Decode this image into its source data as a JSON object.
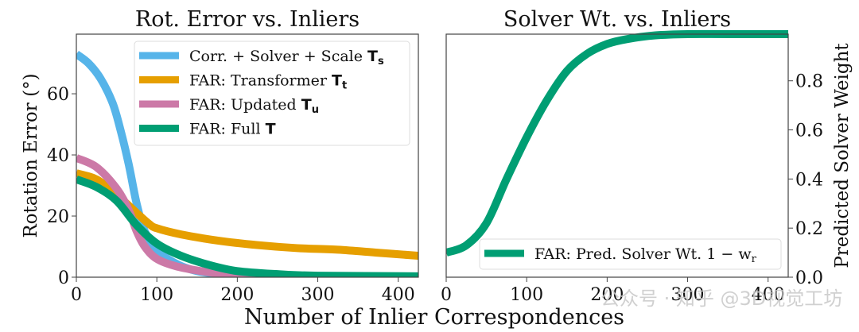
{
  "figure": {
    "xlabel": "Number of Inlier Correspondences",
    "watermark": "公众号 · 知乎 @3D视觉工坊"
  },
  "left": {
    "title": "Rot. Error vs. Inliers",
    "ylabel": "Rotation Error (°)",
    "xticks": [
      "0",
      "100",
      "200",
      "300",
      "400"
    ],
    "yticks": [
      "0",
      "20",
      "40",
      "60"
    ],
    "legend": [
      {
        "text": "Corr. + Solver + Scale ",
        "bold": "T",
        "sub": "s",
        "color": "#56B4E9"
      },
      {
        "text": "FAR: Transformer ",
        "bold": "T",
        "sub": "t",
        "color": "#E69F00"
      },
      {
        "text": "FAR: Updated ",
        "bold": "T",
        "sub": "u",
        "color": "#CC79A7"
      },
      {
        "text": "FAR: Full ",
        "bold": "T",
        "sub": "",
        "color": "#009E73"
      }
    ]
  },
  "right": {
    "title": "Solver Wt. vs. Inliers",
    "ylabel": "Predicted Solver Weight",
    "xticks": [
      "0",
      "100",
      "200",
      "300",
      "400"
    ],
    "yticks": [
      "0.0",
      "0.2",
      "0.4",
      "0.6",
      "0.8"
    ],
    "legend": [
      {
        "text": "FAR: Pred. Solver Wt. 1 − w",
        "sub": "r",
        "color": "#009E73"
      }
    ]
  },
  "chart_data": [
    {
      "type": "line",
      "title": "Rot. Error vs. Inliers",
      "xlabel": "Number of Inlier Correspondences",
      "ylabel": "Rotation Error (°)",
      "xlim": [
        0,
        425
      ],
      "ylim": [
        0,
        79.5
      ],
      "xticks": [
        0,
        100,
        200,
        300,
        400
      ],
      "yticks": [
        0,
        20,
        40,
        60
      ],
      "grid": false,
      "legend_position": "upper right",
      "series": [
        {
          "name": "Corr. + Solver + Scale T_s",
          "color": "#56B4E9",
          "x": [
            0,
            15,
            30,
            45,
            55,
            65,
            75,
            85,
            100,
            120,
            150,
            200,
            250,
            425
          ],
          "y": [
            73,
            70,
            65,
            57,
            48,
            37,
            24,
            15,
            9,
            5,
            2,
            0.5,
            0.1,
            0
          ]
        },
        {
          "name": "FAR: Transformer T_t",
          "color": "#E69F00",
          "x": [
            0,
            25,
            50,
            75,
            90,
            100,
            130,
            175,
            225,
            275,
            325,
            375,
            425
          ],
          "y": [
            34,
            32,
            27,
            21,
            17.5,
            16,
            14,
            12,
            10.5,
            9.5,
            9,
            8,
            7
          ]
        },
        {
          "name": "FAR: Updated T_u",
          "color": "#CC79A7",
          "x": [
            0,
            25,
            50,
            65,
            75,
            85,
            100,
            125,
            160,
            200,
            250,
            425
          ],
          "y": [
            39,
            36,
            29,
            22,
            15,
            10,
            6,
            3.5,
            1.8,
            0.5,
            0.1,
            0
          ]
        },
        {
          "name": "FAR: Full T",
          "color": "#009E73",
          "x": [
            0,
            25,
            50,
            75,
            100,
            130,
            165,
            200,
            250,
            300,
            425
          ],
          "y": [
            32,
            29.5,
            25,
            17,
            11,
            7,
            4,
            2,
            1,
            0.5,
            0.3
          ]
        }
      ]
    },
    {
      "type": "line",
      "title": "Solver Wt. vs. Inliers",
      "xlabel": "Number of Inlier Correspondences",
      "ylabel": "Predicted Solver Weight",
      "xlim": [
        0,
        425
      ],
      "ylim": [
        0,
        0.99
      ],
      "xticks": [
        0,
        100,
        200,
        300,
        400
      ],
      "yticks": [
        0.0,
        0.2,
        0.4,
        0.6,
        0.8
      ],
      "y_axis_side": "right",
      "grid": false,
      "legend_position": "lower right",
      "series": [
        {
          "name": "FAR: Pred. Solver Wt. 1 − w_r",
          "color": "#009E73",
          "x": [
            0,
            25,
            50,
            75,
            100,
            125,
            150,
            175,
            200,
            225,
            260,
            300,
            350,
            425
          ],
          "y": [
            0.1,
            0.13,
            0.22,
            0.4,
            0.57,
            0.72,
            0.84,
            0.91,
            0.95,
            0.97,
            0.985,
            0.99,
            0.99,
            0.99
          ]
        }
      ]
    }
  ]
}
